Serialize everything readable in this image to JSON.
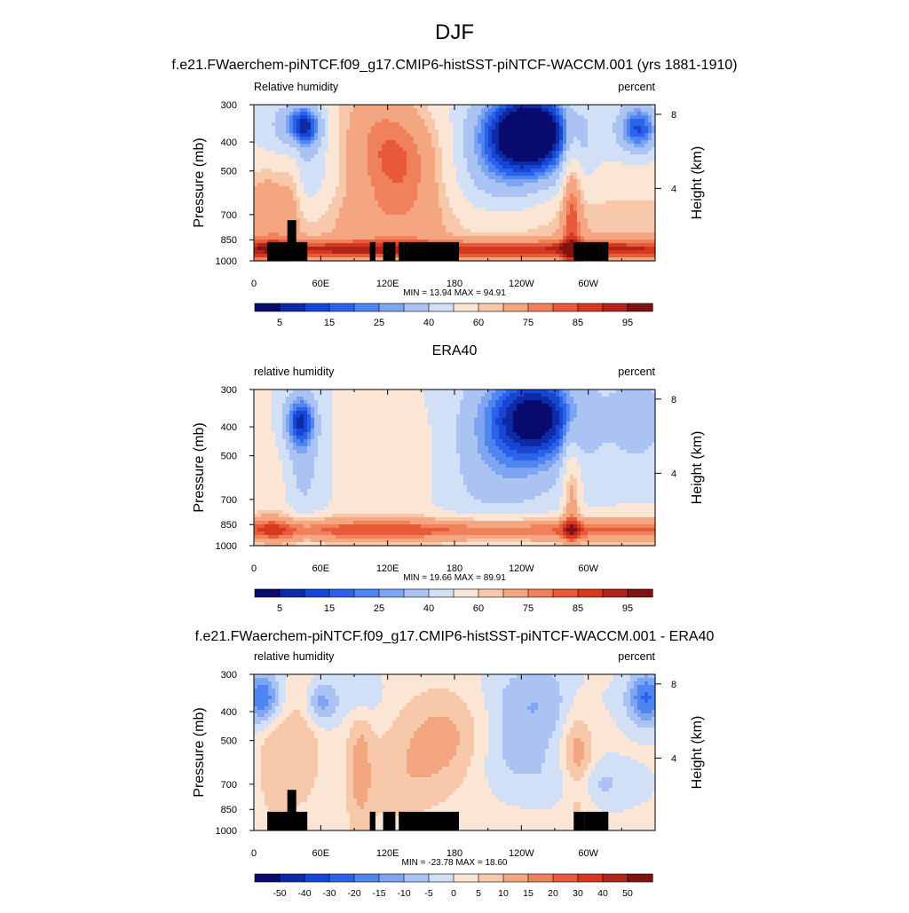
{
  "page": {
    "title": "DJF"
  },
  "chart_data": [
    {
      "type": "heatmap",
      "title": "f.e21.FWaerchem-piNTCF.f09_g17.CMIP6-histSST-piNTCF-WACCM.001 (yrs 1881-1910)",
      "left_label": "Relative humidity",
      "right_label": "percent",
      "ylabel": "Pressure (mb)",
      "y2label": "Height (km)",
      "y_ticks": [
        "300",
        "400",
        "500",
        "700",
        "850",
        "1000"
      ],
      "y2_ticks": [
        "8",
        "4"
      ],
      "x_ticks": [
        "0",
        "60E",
        "120E",
        "180",
        "120W",
        "60W"
      ],
      "stats": "MIN =  13.94  MAX =  94.91",
      "colorbar_labels": [
        "5",
        "15",
        "25",
        "40",
        "60",
        "75",
        "85",
        "95"
      ],
      "palette": [
        "#080a6e",
        "#0d2ba6",
        "#1746d4",
        "#2c62ea",
        "#4f85f0",
        "#7ea5f2",
        "#aac3f3",
        "#d1e0f6",
        "#fbe6d6",
        "#f8c8ab",
        "#f4a681",
        "#ef825b",
        "#e95a3a",
        "#d7391f",
        "#b2231a",
        "#7f1212"
      ],
      "has_topography": true,
      "field": "model"
    },
    {
      "type": "heatmap",
      "title": "ERA40",
      "left_label": "relative humidity",
      "right_label": "percent",
      "ylabel": "Pressure (mb)",
      "y2label": "Height (km)",
      "y_ticks": [
        "300",
        "400",
        "500",
        "700",
        "850",
        "1000"
      ],
      "y2_ticks": [
        "8",
        "4"
      ],
      "x_ticks": [
        "0",
        "60E",
        "120E",
        "180",
        "120W",
        "60W"
      ],
      "stats": "MIN =  19.66  MAX =  89.91",
      "colorbar_labels": [
        "5",
        "15",
        "25",
        "40",
        "60",
        "75",
        "85",
        "95"
      ],
      "palette": [
        "#080a6e",
        "#0d2ba6",
        "#1746d4",
        "#2c62ea",
        "#4f85f0",
        "#7ea5f2",
        "#aac3f3",
        "#d1e0f6",
        "#fbe6d6",
        "#f8c8ab",
        "#f4a681",
        "#ef825b",
        "#e95a3a",
        "#d7391f",
        "#b2231a",
        "#7f1212"
      ],
      "has_topography": false,
      "field": "obs"
    },
    {
      "type": "heatmap",
      "title": "f.e21.FWaerchem-piNTCF.f09_g17.CMIP6-histSST-piNTCF-WACCM.001 - ERA40",
      "left_label": "relative humidity",
      "right_label": "percent",
      "ylabel": "Pressure (mb)",
      "y2label": "Height (km)",
      "y_ticks": [
        "300",
        "400",
        "500",
        "700",
        "850",
        "1000"
      ],
      "y2_ticks": [
        "8",
        "4"
      ],
      "x_ticks": [
        "0",
        "60E",
        "120E",
        "180",
        "120W",
        "60W"
      ],
      "stats": "MIN = -23.78  MAX =  18.60",
      "colorbar_labels": [
        "-50",
        "-40",
        "-30",
        "-20",
        "-15",
        "-10",
        "-5",
        "0",
        "5",
        "10",
        "15",
        "20",
        "30",
        "40",
        "50"
      ],
      "palette": [
        "#080a6e",
        "#0d2ba6",
        "#1746d4",
        "#2c62ea",
        "#4f85f0",
        "#7ea5f2",
        "#aac3f3",
        "#d1e0f6",
        "#fbe6d6",
        "#f8c8ab",
        "#f4a681",
        "#ef825b",
        "#e95a3a",
        "#d7391f",
        "#b2231a",
        "#7f1212"
      ],
      "has_topography": true,
      "field": "diff"
    }
  ]
}
